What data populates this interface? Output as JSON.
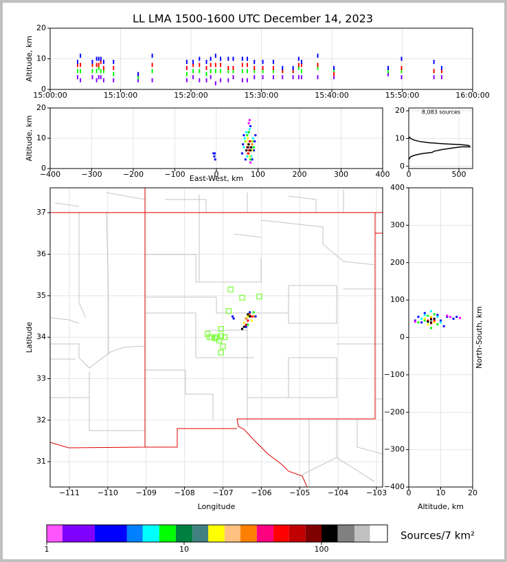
{
  "chart_data": [
    {
      "type": "scatter",
      "title": "LL LMA 1500-1600 UTC December 14, 2023",
      "ylabel": "Altitude, km",
      "xlim": [
        0,
        60
      ],
      "xticks": [
        {
          "value": 0,
          "label": "15:00:00"
        },
        {
          "value": 10,
          "label": "15:10:00"
        },
        {
          "value": 20,
          "label": "15:20:00"
        },
        {
          "value": 30,
          "label": "15:30:00"
        },
        {
          "value": 40,
          "label": "15:40:00"
        },
        {
          "value": 50,
          "label": "15:50:00"
        },
        {
          "value": 60,
          "label": "16:00:00"
        }
      ],
      "ylim": [
        0,
        20
      ],
      "yticks": [
        0,
        10,
        20
      ],
      "grid": true,
      "series": [
        {
          "color": "#8000ff",
          "x": [
            3.9,
            4.3,
            6.0,
            6.6,
            6.9,
            7.2,
            7.6,
            9.0,
            12.5,
            14.5,
            19.4,
            20.3,
            21.2,
            22.2,
            22.8,
            23.5,
            24.2,
            25.3,
            26.0,
            27.3,
            28.0,
            29.0,
            30.2,
            31.7,
            33.0,
            34.5,
            35.3,
            35.7,
            38.0,
            40.3,
            48.0,
            49.9,
            54.5,
            55.6
          ],
          "y": [
            4,
            3,
            4,
            3,
            4,
            4,
            3,
            3,
            3,
            3,
            3,
            4,
            3,
            3,
            4,
            2,
            3,
            3,
            4,
            3,
            3,
            4,
            4,
            4,
            4,
            4,
            4,
            4,
            4,
            4,
            5,
            4,
            4,
            4
          ]
        },
        {
          "color": "#00ff00",
          "x": [
            3.9,
            4.3,
            6.0,
            6.6,
            6.9,
            7.2,
            7.6,
            9.0,
            12.5,
            14.5,
            19.4,
            20.3,
            21.2,
            22.2,
            22.8,
            23.5,
            24.2,
            25.3,
            26.0,
            27.3,
            28.0,
            29.0,
            30.2,
            31.7,
            33.0,
            34.5,
            35.3,
            35.7,
            38.0,
            40.3,
            48.0,
            49.9,
            54.5,
            55.6
          ],
          "y": [
            6,
            6,
            6,
            6,
            7,
            6,
            6,
            5,
            4,
            6,
            5,
            6,
            6,
            5,
            6,
            6,
            6,
            6,
            6,
            6,
            6,
            6,
            6,
            6,
            6,
            6,
            7,
            6,
            7,
            6,
            6,
            6,
            6,
            6
          ]
        },
        {
          "color": "#ff0000",
          "x": [
            3.9,
            4.3,
            6.0,
            6.6,
            6.9,
            7.2,
            7.6,
            9.0,
            12.5,
            14.5,
            19.4,
            20.3,
            21.2,
            22.2,
            22.8,
            23.5,
            24.2,
            25.3,
            26.0,
            27.3,
            28.0,
            29.0,
            30.2,
            31.7,
            33.0,
            34.5,
            35.3,
            35.7,
            38.0,
            40.3,
            48.0,
            49.9,
            54.5,
            55.6
          ],
          "y": [
            8,
            8,
            8,
            8,
            8,
            9,
            7,
            7,
            5,
            8,
            7,
            8,
            8,
            7,
            8,
            8,
            8,
            7,
            7,
            8,
            8,
            7,
            7,
            7,
            6,
            6,
            8,
            8,
            8,
            5,
            7,
            7,
            6,
            6
          ]
        },
        {
          "color": "#0000ff",
          "x": [
            3.9,
            4.3,
            6.0,
            6.6,
            6.9,
            7.2,
            7.6,
            9.0,
            12.5,
            14.5,
            19.4,
            20.3,
            21.2,
            22.2,
            22.8,
            23.5,
            24.2,
            25.3,
            26.0,
            27.3,
            28.0,
            29.0,
            30.2,
            31.7,
            33.0,
            34.5,
            35.3,
            35.7,
            38.0,
            40.3,
            48.0,
            49.9,
            54.5,
            55.6
          ],
          "y": [
            9,
            11,
            9,
            10,
            10,
            10,
            9,
            9,
            5,
            11,
            9,
            9,
            10,
            9,
            10,
            11,
            10,
            10,
            10,
            10,
            10,
            9,
            9,
            9,
            7,
            7,
            10,
            9,
            11,
            7,
            7,
            10,
            9,
            7
          ]
        }
      ]
    },
    {
      "type": "scatter",
      "xlabel": "East-West, km",
      "ylabel": "Altitude, km",
      "xlim": [
        -400,
        400
      ],
      "xticks": [
        {
          "value": -400,
          "label": "−400"
        },
        {
          "value": -300,
          "label": "−300"
        },
        {
          "value": -200,
          "label": "−200"
        },
        {
          "value": -100,
          "label": "−100"
        },
        0,
        100,
        200,
        300,
        400
      ],
      "ylim": [
        0,
        20
      ],
      "yticks": [
        0,
        10,
        20
      ],
      "grid": true,
      "series": [
        {
          "color": "#0000ff",
          "x": [
            62,
            64,
            66,
            90,
            92,
            94,
            70,
            86,
            78,
            82,
            -5,
            -3,
            -7,
            -4
          ],
          "y": [
            5,
            8,
            11,
            6,
            9,
            11,
            3,
            3,
            12,
            14,
            4,
            3,
            5,
            5
          ]
        },
        {
          "color": "#00ffff",
          "x": [
            68,
            72,
            88,
            74,
            84,
            80,
            66
          ],
          "y": [
            10,
            12,
            10,
            4,
            4,
            13,
            7
          ]
        },
        {
          "color": "#00ff00",
          "x": [
            70,
            74,
            86,
            90,
            78,
            82
          ],
          "y": [
            9,
            11,
            9,
            7,
            12,
            3
          ]
        },
        {
          "color": "#ffff00",
          "x": [
            72,
            76,
            84,
            86,
            80
          ],
          "y": [
            9,
            10,
            9,
            6,
            4
          ]
        },
        {
          "color": "#ff8000",
          "x": [
            72,
            76,
            82,
            86,
            78
          ],
          "y": [
            6,
            8,
            9,
            8,
            5
          ]
        },
        {
          "color": "#ff0000",
          "x": [
            74,
            78,
            82,
            80,
            76
          ],
          "y": [
            7,
            6,
            7,
            9,
            5
          ]
        },
        {
          "color": "#000000",
          "x": [
            72,
            76,
            78,
            82,
            84
          ],
          "y": [
            6,
            7,
            8,
            6,
            7
          ]
        },
        {
          "color": "#ff00ff",
          "x": [
            78,
            80,
            82
          ],
          "y": [
            15,
            16,
            2
          ]
        }
      ]
    },
    {
      "type": "line",
      "annotation": "8,083 sources",
      "xlim": [
        0,
        637
      ],
      "xticks": [
        0,
        500
      ],
      "ylim": [
        -0.8,
        21
      ],
      "yticks": [
        0,
        10,
        20
      ],
      "grid": true,
      "series": [
        {
          "color": "#000000",
          "x": [
            0,
            20,
            60,
            120,
            180,
            230,
            260,
            330,
            420,
            520,
            610,
            600,
            520,
            360,
            200,
            100,
            50,
            20,
            8,
            0
          ],
          "y": [
            2.5,
            3.5,
            4,
            4.5,
            4.8,
            5,
            5.5,
            6,
            6.5,
            7,
            7,
            7.5,
            7.8,
            8.1,
            8.5,
            9,
            9.5,
            10,
            10.5,
            10
          ]
        }
      ]
    },
    {
      "type": "map",
      "xlabel": "Longitude",
      "ylabel": "Latitude",
      "xlim": [
        -111.5,
        -102.84
      ],
      "xticks": [
        {
          "value": -111,
          "label": "−111"
        },
        {
          "value": -110,
          "label": "−110"
        },
        {
          "value": -109,
          "label": "−109"
        },
        {
          "value": -108,
          "label": "−108"
        },
        {
          "value": -107,
          "label": "−107"
        },
        {
          "value": -106,
          "label": "−106"
        },
        {
          "value": -105,
          "label": "−105"
        },
        {
          "value": -104,
          "label": "−104"
        },
        {
          "value": -103,
          "label": "−103"
        }
      ],
      "ylim": [
        30.39,
        37.6
      ],
      "yticks": [
        31,
        32,
        33,
        34,
        35,
        36,
        37
      ],
      "grid": true,
      "series": [
        {
          "color": "#80ff40",
          "marker": "open-square",
          "x": [
            -106.8,
            -106.5,
            -106.05,
            -106.85,
            -107.05,
            -107.4,
            -107.3,
            -107.35,
            -107.2,
            -107.05,
            -107.1,
            -106.95,
            -107.0,
            -107.05,
            -107.15
          ],
          "y": [
            35.15,
            34.95,
            34.98,
            34.63,
            34.2,
            34.08,
            34.0,
            34.0,
            33.97,
            34.03,
            33.92,
            34.0,
            33.78,
            33.63,
            34.0
          ]
        },
        {
          "color": "#0000ff",
          "x": [
            -106.75,
            -106.72,
            -106.3,
            -106.15,
            -106.4
          ],
          "y": [
            34.5,
            34.45,
            34.6,
            34.5,
            34.25
          ]
        },
        {
          "color": "#00ff00",
          "x": [
            -106.2,
            -106.35
          ],
          "y": [
            34.6,
            34.3
          ]
        },
        {
          "color": "#ffff00",
          "x": [
            -106.35,
            -106.25,
            -106.45
          ],
          "y": [
            34.5,
            34.4,
            34.35
          ]
        },
        {
          "color": "#ff8000",
          "x": [
            -106.4,
            -106.3,
            -106.2
          ],
          "y": [
            34.45,
            34.55,
            34.5
          ]
        },
        {
          "color": "#ff0000",
          "x": [
            -106.35,
            -106.25,
            -106.4
          ],
          "y": [
            34.4,
            34.5,
            34.3
          ]
        },
        {
          "color": "#000000",
          "x": [
            -106.5,
            -106.45,
            -106.3,
            -106.35
          ],
          "y": [
            34.2,
            34.25,
            34.5,
            34.55
          ]
        }
      ]
    },
    {
      "type": "scatter",
      "xlabel": "Altitude, km",
      "ylabel": "North-South, km",
      "ylabel_side": "right",
      "xlim": [
        0,
        20
      ],
      "xticks": [
        0,
        10,
        20
      ],
      "ylim": [
        -400,
        400
      ],
      "yticks": [
        {
          "value": -400,
          "label": "−400"
        },
        {
          "value": -300,
          "label": "−300"
        },
        {
          "value": -200,
          "label": "−200"
        },
        {
          "value": -100,
          "label": "−100"
        },
        0,
        100,
        200,
        300,
        400
      ],
      "grid": true,
      "series": [
        {
          "color": "#0000ff",
          "x": [
            3,
            4,
            5,
            9,
            10,
            11,
            2,
            12,
            14,
            15
          ],
          "y": [
            55,
            40,
            65,
            60,
            45,
            30,
            45,
            55,
            50,
            55
          ]
        },
        {
          "color": "#00ffff",
          "x": [
            4,
            5,
            9,
            10,
            7
          ],
          "y": [
            50,
            60,
            55,
            40,
            70
          ]
        },
        {
          "color": "#00ff00",
          "x": [
            5,
            6,
            8,
            9,
            7,
            3
          ],
          "y": [
            45,
            58,
            62,
            35,
            25,
            40
          ]
        },
        {
          "color": "#ffff00",
          "x": [
            6,
            7,
            8,
            5
          ],
          "y": [
            35,
            55,
            40,
            50
          ]
        },
        {
          "color": "#ff0000",
          "x": [
            6,
            7,
            8,
            7
          ],
          "y": [
            45,
            50,
            45,
            38
          ]
        },
        {
          "color": "#000000",
          "x": [
            6,
            7,
            7,
            8
          ],
          "y": [
            42,
            48,
            40,
            50
          ]
        },
        {
          "color": "#ff00ff",
          "x": [
            12,
            13,
            16,
            2
          ],
          "y": [
            58,
            55,
            52,
            42
          ]
        }
      ]
    },
    {
      "type": "colorbar",
      "label": "Sources/7 km²",
      "log": true,
      "bounds": [
        1,
        1.3,
        2.24,
        3.84,
        5,
        6.6,
        8.7,
        11.5,
        15,
        19.7,
        25.7,
        33.8,
        44.7,
        58,
        76.5,
        100,
        131,
        174,
        225,
        302
      ],
      "colors": [
        "#ff55ff",
        "#8000ff",
        "#0000ff",
        "#0080ff",
        "#00ffff",
        "#00ff00",
        "#008040",
        "#408080",
        "#ffff00",
        "#ffc080",
        "#ff8000",
        "#ff0080",
        "#ff0000",
        "#c00000",
        "#800000",
        "#000000",
        "#808080",
        "#c0c0c0",
        "#ffffff"
      ],
      "xticks": [
        1,
        10,
        100
      ]
    }
  ]
}
